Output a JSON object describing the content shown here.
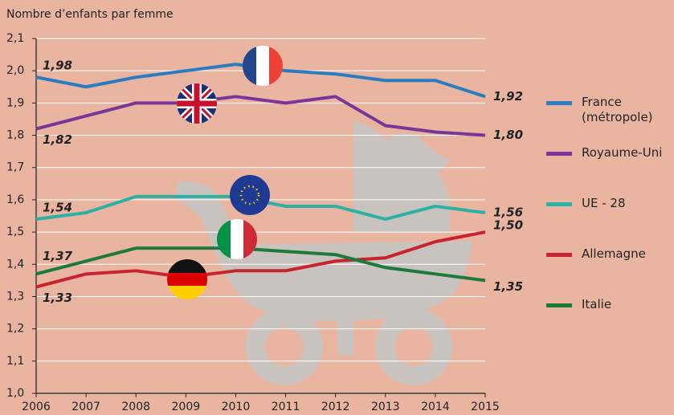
{
  "chart_data": {
    "type": "line",
    "y_label": "Nombre d’enfants par femme",
    "x": [
      2006,
      2007,
      2008,
      2009,
      2010,
      2011,
      2012,
      2013,
      2014,
      2015
    ],
    "xlim": [
      2006,
      2015
    ],
    "xticks": [
      2006,
      2007,
      2008,
      2009,
      2010,
      2011,
      2012,
      2013,
      2014,
      2015
    ],
    "ylim": [
      1.0,
      2.1
    ],
    "yticks": [
      {
        "value": 1.0,
        "label": "1,0"
      },
      {
        "value": 1.1,
        "label": "1,1"
      },
      {
        "value": 1.2,
        "label": "1,2"
      },
      {
        "value": 1.3,
        "label": "1,3"
      },
      {
        "value": 1.4,
        "label": "1,4"
      },
      {
        "value": 1.5,
        "label": "1,5"
      },
      {
        "value": 1.6,
        "label": "1,6"
      },
      {
        "value": 1.7,
        "label": "1,7"
      },
      {
        "value": 1.8,
        "label": "1,8"
      },
      {
        "value": 1.9,
        "label": "1,9"
      },
      {
        "value": 2.0,
        "label": "2,0"
      },
      {
        "value": 2.1,
        "label": "2,1"
      }
    ],
    "grid": true,
    "series": [
      {
        "name": "France (métropole)",
        "color": "#2a7cc0",
        "values": [
          1.98,
          1.95,
          1.98,
          2.0,
          2.02,
          2.0,
          1.99,
          1.97,
          1.97,
          1.92
        ],
        "value_labels": [
          "1,98",
          null,
          null,
          null,
          null,
          null,
          null,
          null,
          null,
          "1,92"
        ]
      },
      {
        "name": "Royaume-Uni",
        "color": "#7b3596",
        "values": [
          1.82,
          1.86,
          1.9,
          1.9,
          1.92,
          1.9,
          1.92,
          1.83,
          1.81,
          1.8
        ],
        "value_labels": [
          "1,82",
          null,
          null,
          null,
          null,
          null,
          null,
          null,
          null,
          "1,80"
        ]
      },
      {
        "name": "UE - 28",
        "color": "#2eb1a5",
        "values": [
          1.54,
          1.56,
          1.61,
          1.61,
          1.61,
          1.58,
          1.58,
          1.54,
          1.58,
          1.56
        ],
        "value_labels": [
          "1,54",
          null,
          null,
          null,
          null,
          null,
          null,
          null,
          null,
          "1,56"
        ]
      },
      {
        "name": "Allemagne",
        "color": "#c8242d",
        "values": [
          1.33,
          1.37,
          1.38,
          1.36,
          1.38,
          1.38,
          1.41,
          1.42,
          1.47,
          1.5
        ],
        "value_labels": [
          "1,33",
          null,
          null,
          null,
          null,
          null,
          null,
          null,
          null,
          "1,50"
        ]
      },
      {
        "name": "Italie",
        "color": "#1d7a3c",
        "values": [
          1.37,
          1.41,
          1.45,
          1.45,
          1.45,
          1.44,
          1.43,
          1.39,
          1.37,
          1.35
        ],
        "value_labels": [
          "1,37",
          null,
          null,
          null,
          null,
          null,
          null,
          null,
          null,
          "1,35"
        ]
      }
    ]
  }
}
